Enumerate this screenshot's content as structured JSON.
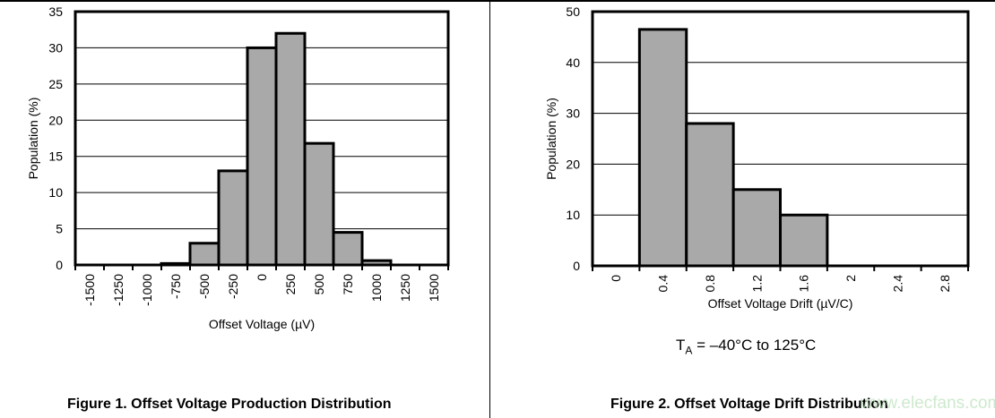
{
  "chart_data": [
    {
      "type": "bar",
      "title": "Figure 1. Offset Voltage Production Distribution",
      "xlabel": "Offset Voltage (µV)",
      "ylabel": "Population (%)",
      "categories": [
        "-1500",
        "-1250",
        "-1000",
        "-750",
        "-500",
        "-250",
        "0",
        "250",
        "500",
        "750",
        "1000",
        "1250",
        "1500"
      ],
      "values": [
        0,
        0,
        0,
        0.2,
        3,
        13,
        30,
        32,
        16.8,
        4.5,
        0.6,
        0,
        0
      ],
      "ylim": [
        0,
        35
      ],
      "yticks": [
        "0",
        "5",
        "10",
        "15",
        "20",
        "25",
        "30",
        "35"
      ],
      "grid": true,
      "bar_color": "#a9a9a9"
    },
    {
      "type": "bar",
      "title": "Figure 2. Offset Voltage Drift Distribution",
      "xlabel": "Offset Voltage Drift (µV/C)",
      "ylabel": "Population (%)",
      "categories": [
        "0",
        "0.4",
        "0.8",
        "1.2",
        "1.6",
        "2",
        "2.4",
        "2.8"
      ],
      "values": [
        0,
        46.5,
        28,
        15,
        10,
        0,
        0,
        0
      ],
      "ylim": [
        0,
        50
      ],
      "yticks": [
        "0",
        "10",
        "20",
        "30",
        "40",
        "50"
      ],
      "grid": true,
      "bar_color": "#a9a9a9",
      "annotation": {
        "main": "T",
        "sub": "A",
        "rest": " = –40°C to 125°C"
      }
    }
  ],
  "watermark": "www.elecfans.com"
}
